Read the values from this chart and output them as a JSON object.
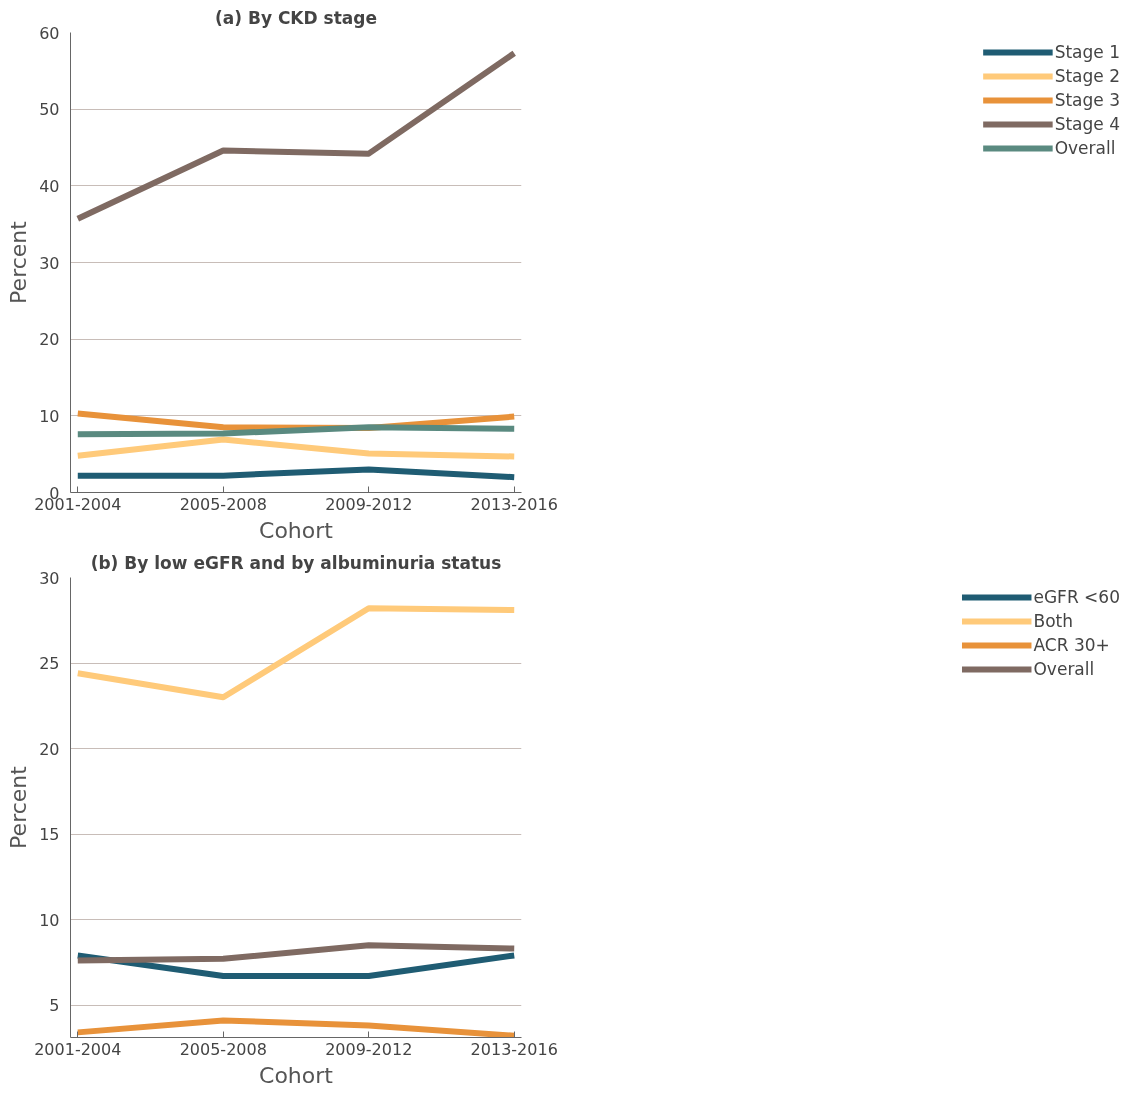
{
  "chart_data": [
    {
      "type": "line",
      "title": "(a) By CKD stage",
      "xlabel": "Cohort",
      "ylabel": "Percent",
      "categories": [
        "2001-2004",
        "2005-2008",
        "2009-2012",
        "2013-2016"
      ],
      "ylim": [
        0,
        60
      ],
      "yticks": [
        0,
        10,
        20,
        30,
        40,
        50,
        60
      ],
      "grid": "y",
      "legend": "right",
      "marker": "none",
      "line_style": "solid",
      "series": [
        {
          "name": "Stage 1",
          "color": "#1f5c73",
          "values": [
            2.2,
            2.2,
            3.0,
            2.0
          ]
        },
        {
          "name": "Stage 2",
          "color": "#ffca7a",
          "values": [
            4.8,
            6.9,
            5.1,
            4.7
          ]
        },
        {
          "name": "Stage 3",
          "color": "#e8923a",
          "values": [
            10.3,
            8.5,
            8.4,
            9.9
          ]
        },
        {
          "name": "Stage 4",
          "color": "#7f6a62",
          "values": [
            35.7,
            44.6,
            44.2,
            57.3
          ]
        },
        {
          "name": "Overall",
          "color": "#5a8a80",
          "values": [
            7.6,
            7.7,
            8.5,
            8.3
          ]
        }
      ]
    },
    {
      "type": "line",
      "title": "(b) By low eGFR and by albuminuria status",
      "xlabel": "Cohort",
      "ylabel": "Percent",
      "categories": [
        "2001-2004",
        "2005-2008",
        "2009-2012",
        "2013-2016"
      ],
      "ylim": [
        3.1,
        30
      ],
      "yticks": [
        5,
        10,
        15,
        20,
        25,
        30
      ],
      "grid": "y",
      "legend": "right",
      "marker": "none",
      "line_style": "solid",
      "series": [
        {
          "name": "eGFR <60",
          "color": "#1f5c73",
          "values": [
            7.9,
            6.7,
            6.7,
            7.9
          ]
        },
        {
          "name": "Both",
          "color": "#ffca7a",
          "values": [
            24.4,
            23.0,
            28.2,
            28.1
          ]
        },
        {
          "name": "ACR 30+",
          "color": "#e8923a",
          "values": [
            3.4,
            4.1,
            3.8,
            3.2
          ]
        },
        {
          "name": "Overall",
          "color": "#7f6a62",
          "values": [
            7.6,
            7.7,
            8.5,
            8.3
          ]
        }
      ]
    }
  ]
}
